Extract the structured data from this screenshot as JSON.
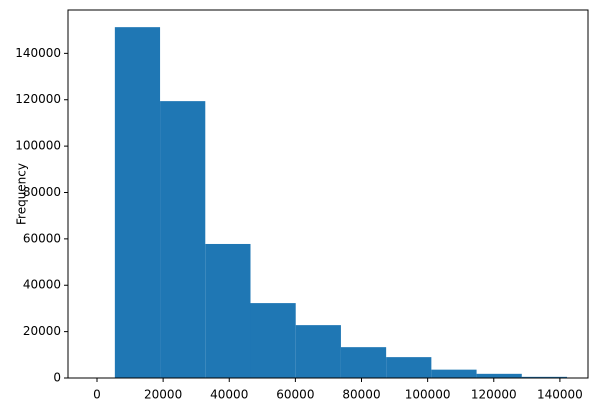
{
  "chart_data": {
    "type": "histogram",
    "ylabel": "Frequency",
    "color": "#1f77b4",
    "bins": [
      5400,
      19075,
      32750,
      46425,
      60100,
      73775,
      87450,
      101125,
      114800,
      128475,
      142150
    ],
    "values": [
      151300,
      119400,
      57800,
      32300,
      22800,
      13300,
      9000,
      3600,
      1800,
      500
    ],
    "xlim": [
      -8770,
      148500
    ],
    "ylim": [
      0,
      158700
    ],
    "xticks": [
      0,
      20000,
      40000,
      60000,
      80000,
      100000,
      120000,
      140000
    ],
    "yticks": [
      0,
      20000,
      40000,
      60000,
      80000,
      100000,
      120000,
      140000
    ]
  }
}
